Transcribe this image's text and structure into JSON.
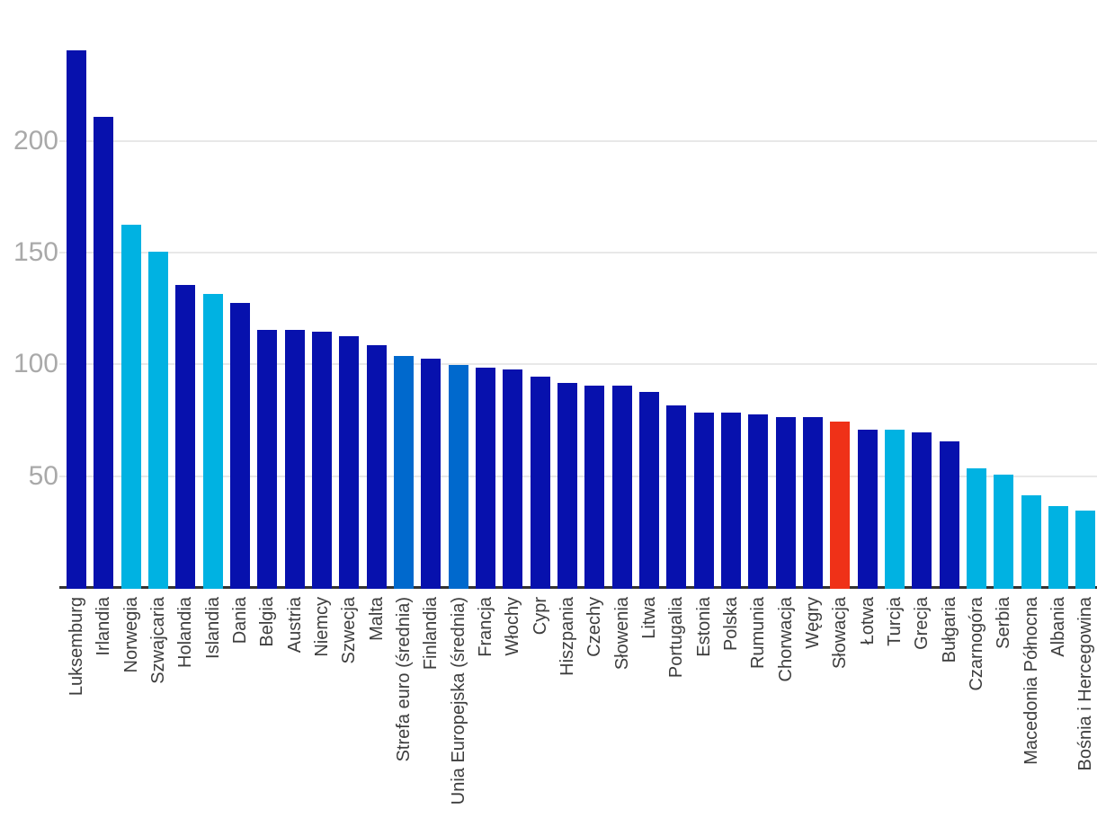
{
  "chart_data": {
    "type": "bar",
    "title": "",
    "xlabel": "",
    "ylabel": "",
    "categories": [
      "Luksemburg",
      "Irlandia",
      "Norwegia",
      "Szwajcaria",
      "Holandia",
      "Islandia",
      "Dania",
      "Belgia",
      "Austria",
      "Niemcy",
      "Szwecja",
      "Malta",
      "Strefa euro (średnia)",
      "Finlandia",
      "Unia Europejska (średnia)",
      "Francja",
      "Włochy",
      "Cypr",
      "Hiszpania",
      "Czechy",
      "Słowenia",
      "Litwa",
      "Portugalia",
      "Estonia",
      "Polska",
      "Rumunia",
      "Chorwacja",
      "Węgry",
      "Słowacja",
      "Łotwa",
      "Turcja",
      "Grecja",
      "Bułgaria",
      "Czarnogóra",
      "Serbia",
      "Macedonia Północna",
      "Albania",
      "Bośnia i Hercegowina"
    ],
    "values": [
      241,
      211,
      163,
      151,
      136,
      132,
      128,
      116,
      116,
      115,
      113,
      109,
      104,
      103,
      100,
      99,
      98,
      95,
      92,
      91,
      91,
      88,
      82,
      79,
      79,
      78,
      77,
      77,
      75,
      71,
      71,
      70,
      66,
      54,
      51,
      42,
      37,
      35
    ],
    "groups": [
      "eu_member",
      "eu_member",
      "non_eu",
      "non_eu",
      "eu_member",
      "non_eu",
      "eu_member",
      "eu_member",
      "eu_member",
      "eu_member",
      "eu_member",
      "eu_member",
      "aggregate",
      "eu_member",
      "aggregate",
      "eu_member",
      "eu_member",
      "eu_member",
      "eu_member",
      "eu_member",
      "eu_member",
      "eu_member",
      "eu_member",
      "eu_member",
      "eu_member",
      "eu_member",
      "eu_member",
      "eu_member",
      "highlight",
      "eu_member",
      "non_eu",
      "eu_member",
      "eu_member",
      "non_eu",
      "non_eu",
      "non_eu",
      "non_eu",
      "non_eu"
    ],
    "colors": {
      "eu_member": "#0711ad",
      "non_eu": "#00b2e2",
      "aggregate": "#0069cd",
      "highlight": "#ef3118"
    },
    "yticks": [
      50,
      100,
      150,
      200
    ],
    "ylim": [
      0,
      263
    ],
    "grid": true,
    "legend_position": "none",
    "axis_colors": {
      "gridline": "#e8e8e8",
      "baseline": "#333333",
      "ytick_text": "#a9a9a9",
      "xtick_text": "#3d3d3d"
    }
  }
}
